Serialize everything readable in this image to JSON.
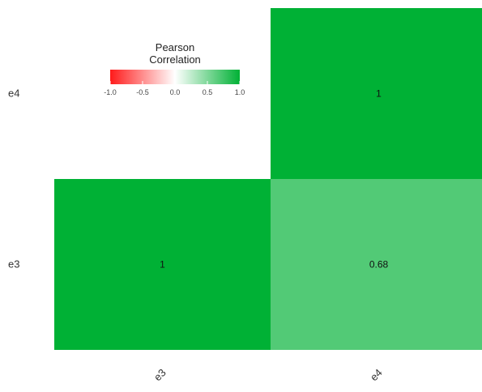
{
  "chart_data": {
    "type": "heatmap",
    "title": "",
    "xlabel": "",
    "ylabel": "",
    "x_categories": [
      "e3",
      "e4"
    ],
    "y_categories": [
      "e3",
      "e4"
    ],
    "cells": [
      {
        "x": "e3",
        "y": "e3",
        "value": 1,
        "label": "1"
      },
      {
        "x": "e4",
        "y": "e3",
        "value": 0.68,
        "label": "0.68"
      },
      {
        "x": "e4",
        "y": "e4",
        "value": 1,
        "label": "1"
      }
    ],
    "legend": {
      "title": "Pearson\nCorrelation",
      "ticks": [
        {
          "value": -1.0,
          "label": "-1.0"
        },
        {
          "value": -0.5,
          "label": "-0.5"
        },
        {
          "value": 0.0,
          "label": "0.0"
        },
        {
          "value": 0.5,
          "label": "0.5"
        },
        {
          "value": 1.0,
          "label": "1.0"
        }
      ],
      "range": [
        -1,
        1
      ],
      "placement": "top-left"
    },
    "colors": {
      "low": "#ff1a1a",
      "mid": "#ffffff",
      "high": "#00b135"
    },
    "x_tick_rotation_deg": 45,
    "grid": false
  }
}
